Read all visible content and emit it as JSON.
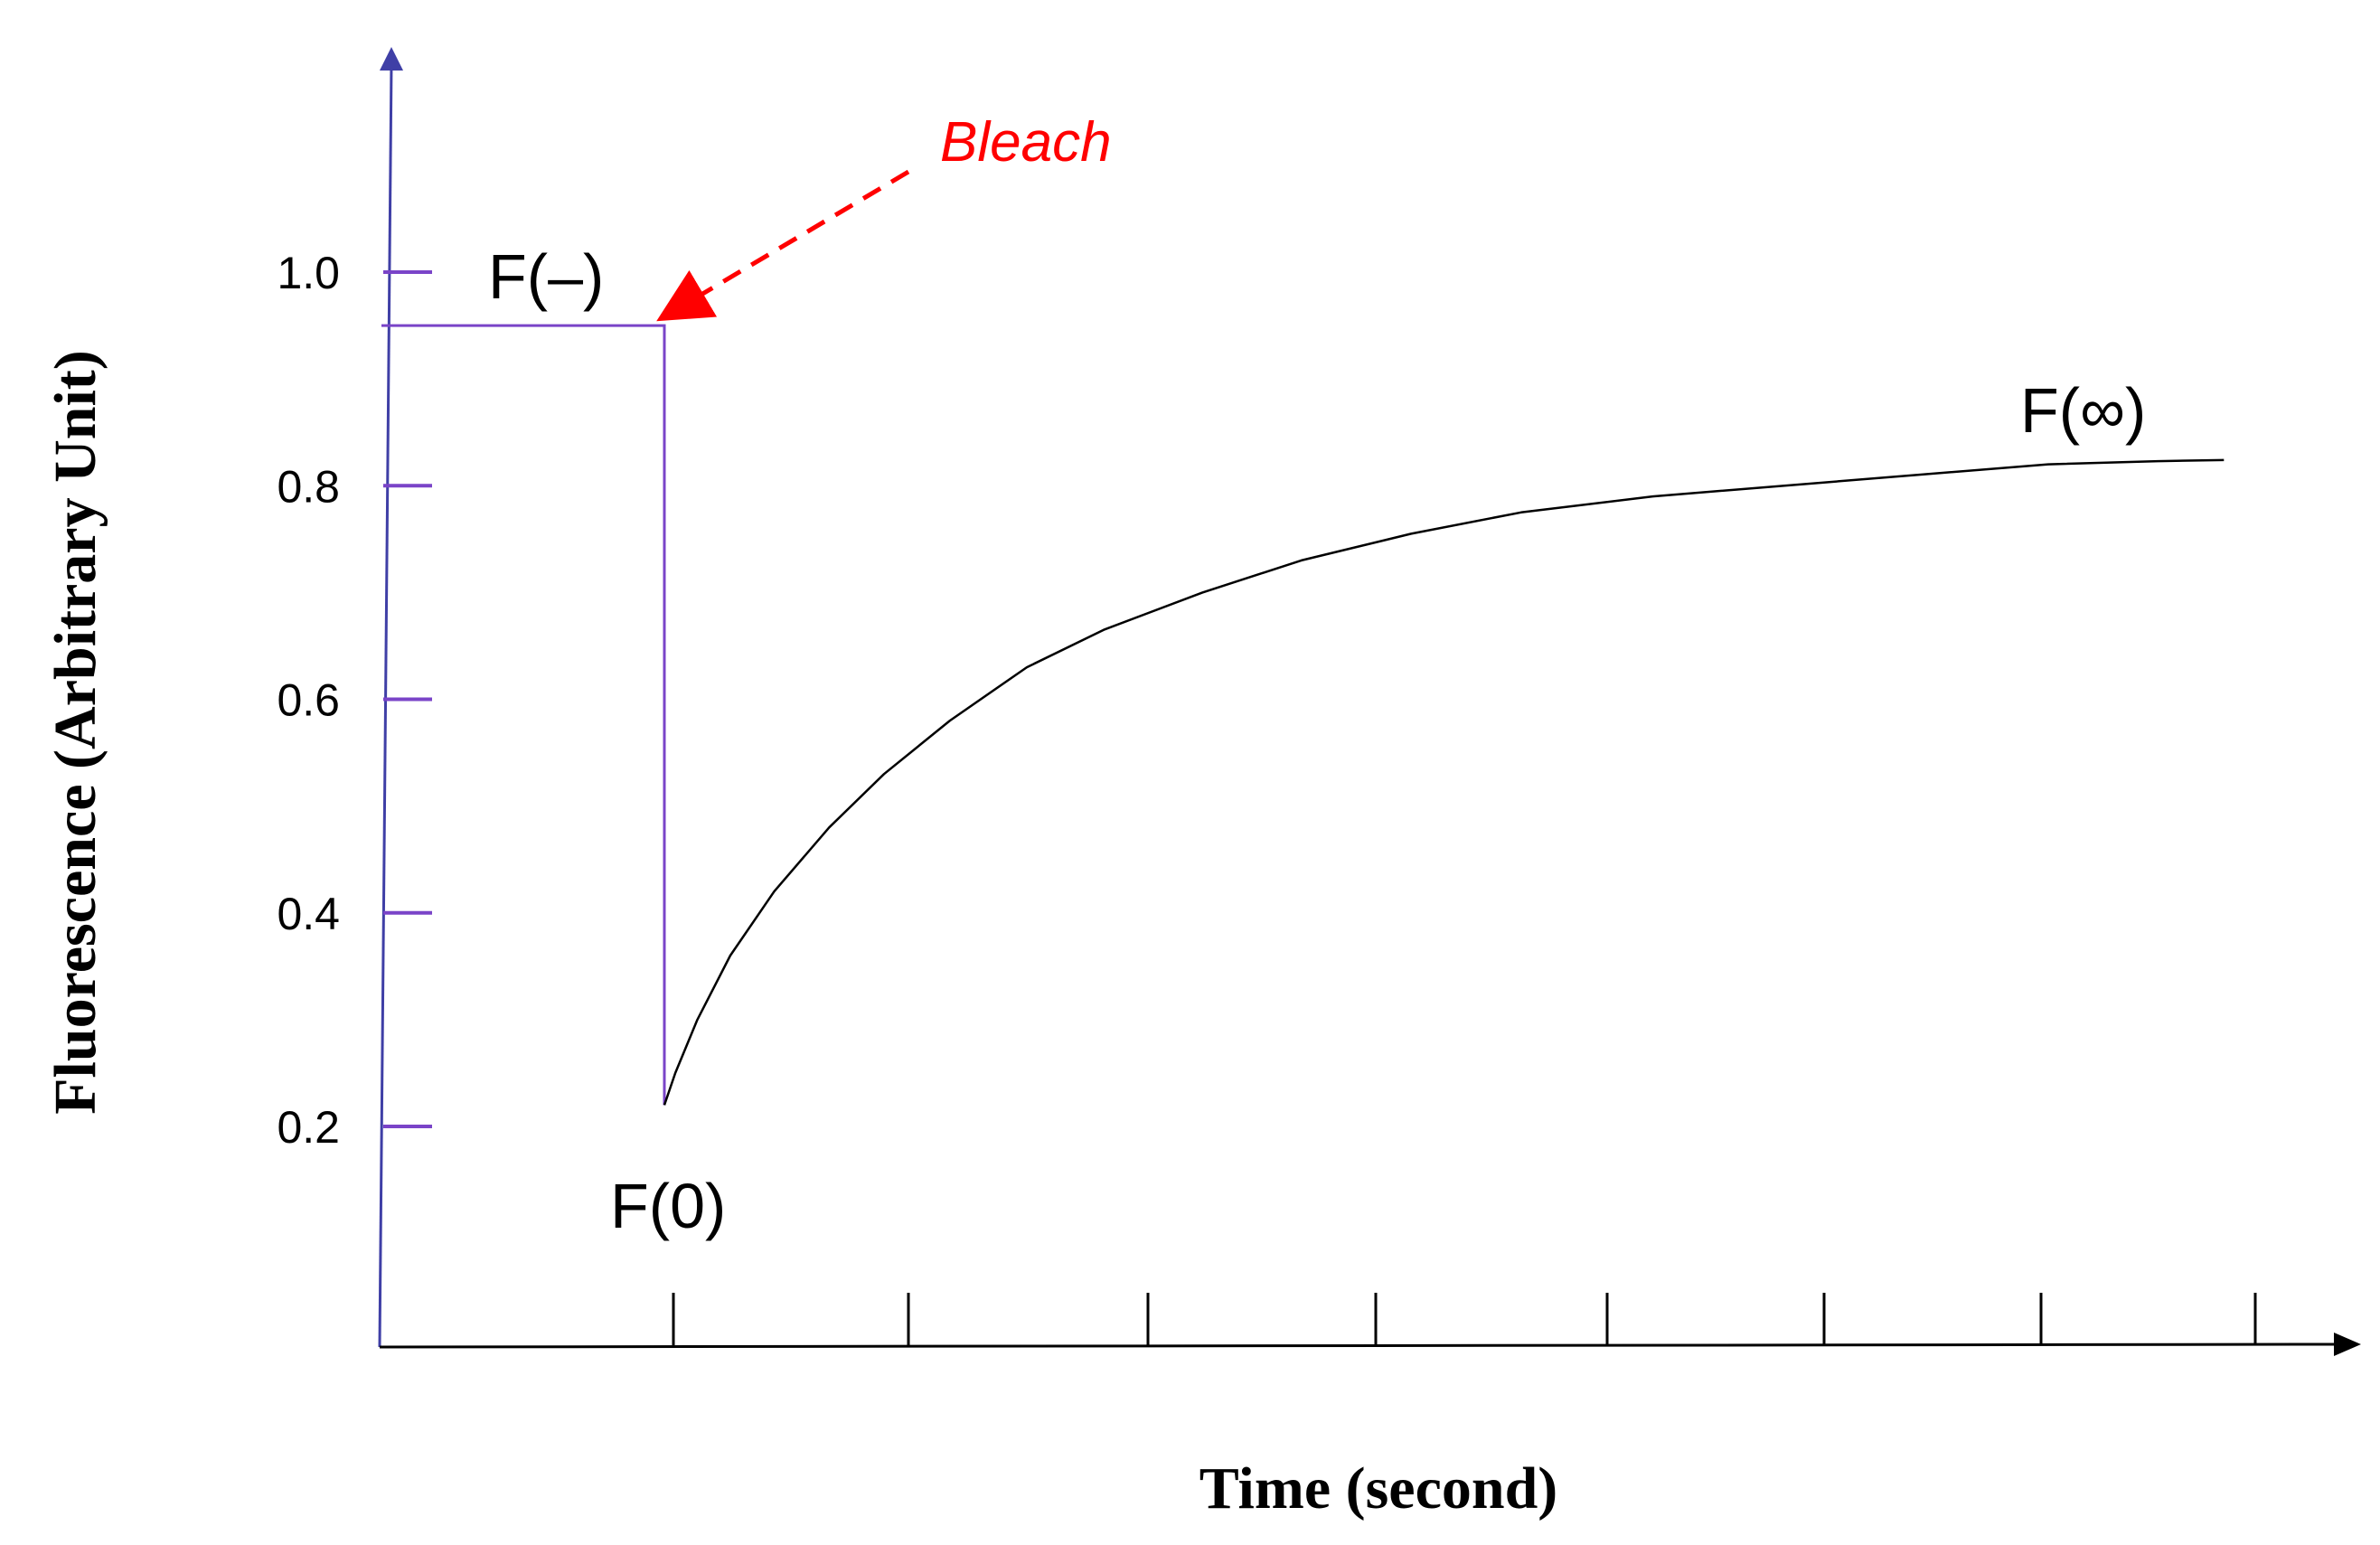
{
  "chart_data": {
    "type": "line",
    "title": "",
    "xlabel": "Time (second)",
    "ylabel": "Fluorescence (Arbitrary Unit)",
    "ylim": [
      0,
      1.2
    ],
    "y_ticks": [
      {
        "value": 1.0,
        "label": "1.0"
      },
      {
        "value": 0.8,
        "label": "0.8"
      },
      {
        "value": 0.6,
        "label": "0.6"
      },
      {
        "value": 0.4,
        "label": "0.4"
      },
      {
        "value": 0.2,
        "label": "0.2"
      }
    ],
    "x_tick_count": 8,
    "grid": false,
    "series": [
      {
        "prebleach": {
          "value": 0.95
        },
        "recovery": [
          [
            0.0,
            0.22
          ],
          [
            0.05,
            0.25
          ],
          [
            0.15,
            0.3
          ],
          [
            0.3,
            0.36
          ],
          [
            0.5,
            0.42
          ],
          [
            0.75,
            0.48
          ],
          [
            1.0,
            0.53
          ],
          [
            1.3,
            0.58
          ],
          [
            1.65,
            0.63
          ],
          [
            2.0,
            0.665
          ],
          [
            2.45,
            0.7
          ],
          [
            2.9,
            0.73
          ],
          [
            3.4,
            0.755
          ],
          [
            3.9,
            0.775
          ],
          [
            4.5,
            0.79
          ],
          [
            5.1,
            0.8
          ],
          [
            5.7,
            0.81
          ],
          [
            6.3,
            0.82
          ],
          [
            6.8,
            0.823
          ],
          [
            7.1,
            0.824
          ]
        ],
        "bleach_x": 0.0,
        "prebleach_x_start": -1.3
      }
    ],
    "annotations": {
      "bleach": "Bleach",
      "f_minus": "F(–)",
      "f_zero": "F(0)",
      "f_inf": "F(∞)"
    },
    "colors": {
      "axis": "#3f3fa6",
      "trace": "#7a44c8",
      "recovery": "#000000",
      "bleach_arrow": "#ff0000",
      "ticks_y": "#7a44c8",
      "ticks_x": "#000000"
    }
  }
}
